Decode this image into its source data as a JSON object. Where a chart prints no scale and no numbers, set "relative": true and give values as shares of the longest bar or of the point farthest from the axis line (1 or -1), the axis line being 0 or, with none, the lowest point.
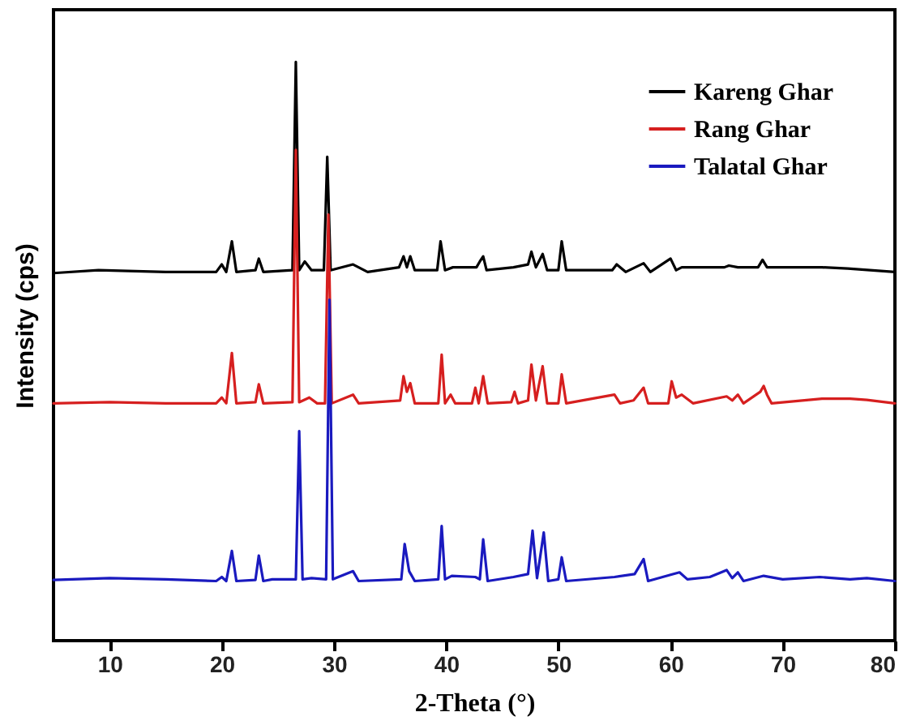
{
  "chart_data": {
    "type": "line",
    "relative": true,
    "xlabel": "2-Theta (°)",
    "ylabel": "Intensity (cps)",
    "xlim": [
      5,
      80
    ],
    "xticks": [
      10,
      20,
      30,
      40,
      50,
      60,
      70,
      80
    ],
    "grid": false,
    "legend": "top right",
    "line_style": "solid",
    "tick_labels": "x",
    "series": [
      {
        "name": "Kareng Ghar",
        "color": "#000000",
        "x": [
          5,
          9,
          15,
          19.5,
          20,
          20.4,
          20.9,
          21.3,
          23,
          23.3,
          23.7,
          26.3,
          26.6,
          26.9,
          27.4,
          28,
          29.1,
          29.4,
          29.7,
          31.7,
          33,
          35.8,
          36.2,
          36.5,
          36.8,
          37.2,
          39.2,
          39.5,
          39.9,
          40.6,
          42.7,
          43,
          43.3,
          43.6,
          46,
          47.3,
          47.6,
          48,
          48.6,
          49,
          50,
          50.3,
          50.7,
          54.8,
          55.2,
          56,
          57.6,
          58.2,
          60,
          60.5,
          61,
          64.8,
          65.2,
          66,
          67.8,
          68.2,
          68.6,
          73.5,
          75.8,
          80
        ],
        "values": [
          0.635,
          0.64,
          0.637,
          0.637,
          0.65,
          0.637,
          0.69,
          0.637,
          0.64,
          0.66,
          0.637,
          0.64,
          1.0,
          0.64,
          0.655,
          0.64,
          0.64,
          0.836,
          0.64,
          0.65,
          0.637,
          0.645,
          0.664,
          0.645,
          0.664,
          0.64,
          0.64,
          0.69,
          0.64,
          0.645,
          0.645,
          0.655,
          0.664,
          0.64,
          0.645,
          0.65,
          0.672,
          0.645,
          0.668,
          0.64,
          0.64,
          0.69,
          0.64,
          0.64,
          0.65,
          0.637,
          0.652,
          0.637,
          0.66,
          0.64,
          0.645,
          0.645,
          0.648,
          0.645,
          0.645,
          0.658,
          0.645,
          0.645,
          0.643,
          0.637
        ]
      },
      {
        "name": "Rang Ghar",
        "color": "#d61f1f",
        "x": [
          5,
          10,
          15,
          19.5,
          20,
          20.4,
          20.9,
          21.3,
          23,
          23.3,
          23.7,
          26.3,
          26.6,
          26.9,
          27.8,
          28.5,
          29.2,
          29.5,
          29.8,
          31.7,
          32.2,
          35.9,
          36.2,
          36.5,
          36.8,
          37.2,
          39.3,
          39.6,
          39.9,
          40.4,
          40.8,
          42.3,
          42.6,
          42.9,
          43.3,
          43.7,
          45.8,
          46.1,
          46.4,
          47.3,
          47.6,
          48,
          48.6,
          49,
          50,
          50.3,
          50.7,
          55,
          55.5,
          56.7,
          57.6,
          58,
          59.8,
          60.1,
          60.5,
          61,
          62,
          65,
          65.5,
          66,
          66.5,
          68,
          68.3,
          68.6,
          69,
          73.5,
          76,
          77.5,
          80
        ],
        "values": [
          0.41,
          0.412,
          0.41,
          0.41,
          0.42,
          0.41,
          0.497,
          0.41,
          0.412,
          0.443,
          0.41,
          0.412,
          0.848,
          0.412,
          0.42,
          0.41,
          0.41,
          0.736,
          0.41,
          0.425,
          0.41,
          0.415,
          0.457,
          0.43,
          0.445,
          0.41,
          0.41,
          0.494,
          0.41,
          0.425,
          0.41,
          0.41,
          0.437,
          0.41,
          0.457,
          0.41,
          0.412,
          0.43,
          0.41,
          0.415,
          0.477,
          0.415,
          0.474,
          0.41,
          0.41,
          0.46,
          0.41,
          0.425,
          0.41,
          0.415,
          0.437,
          0.41,
          0.41,
          0.448,
          0.42,
          0.425,
          0.41,
          0.422,
          0.415,
          0.425,
          0.41,
          0.43,
          0.44,
          0.425,
          0.41,
          0.418,
          0.418,
          0.416,
          0.41
        ]
      },
      {
        "name": "Talatal Ghar",
        "color": "#1a1abf",
        "x": [
          5,
          10,
          15,
          19.5,
          20,
          20.4,
          20.9,
          21.3,
          23,
          23.3,
          23.7,
          24.5,
          26.6,
          26.9,
          27.2,
          28,
          29.3,
          29.6,
          29.9,
          31.7,
          32.2,
          36,
          36.3,
          36.7,
          37.2,
          39.3,
          39.6,
          39.9,
          40.5,
          42.6,
          43,
          43.3,
          43.7,
          46,
          47.3,
          47.7,
          48.1,
          48.7,
          49.1,
          50,
          50.3,
          50.7,
          55,
          56.8,
          57.6,
          58,
          60.2,
          60.8,
          61.5,
          63.5,
          65,
          65.5,
          66,
          66.5,
          68.3,
          70,
          73.3,
          76,
          77.5,
          80
        ],
        "values": [
          0.105,
          0.108,
          0.106,
          0.103,
          0.11,
          0.103,
          0.155,
          0.103,
          0.105,
          0.147,
          0.103,
          0.106,
          0.106,
          0.362,
          0.106,
          0.108,
          0.106,
          0.589,
          0.106,
          0.12,
          0.103,
          0.106,
          0.167,
          0.12,
          0.103,
          0.106,
          0.198,
          0.106,
          0.112,
          0.11,
          0.106,
          0.175,
          0.103,
          0.11,
          0.115,
          0.19,
          0.108,
          0.187,
          0.103,
          0.106,
          0.144,
          0.103,
          0.11,
          0.115,
          0.141,
          0.103,
          0.115,
          0.118,
          0.106,
          0.11,
          0.122,
          0.108,
          0.118,
          0.103,
          0.112,
          0.106,
          0.11,
          0.106,
          0.108,
          0.103
        ]
      }
    ]
  }
}
